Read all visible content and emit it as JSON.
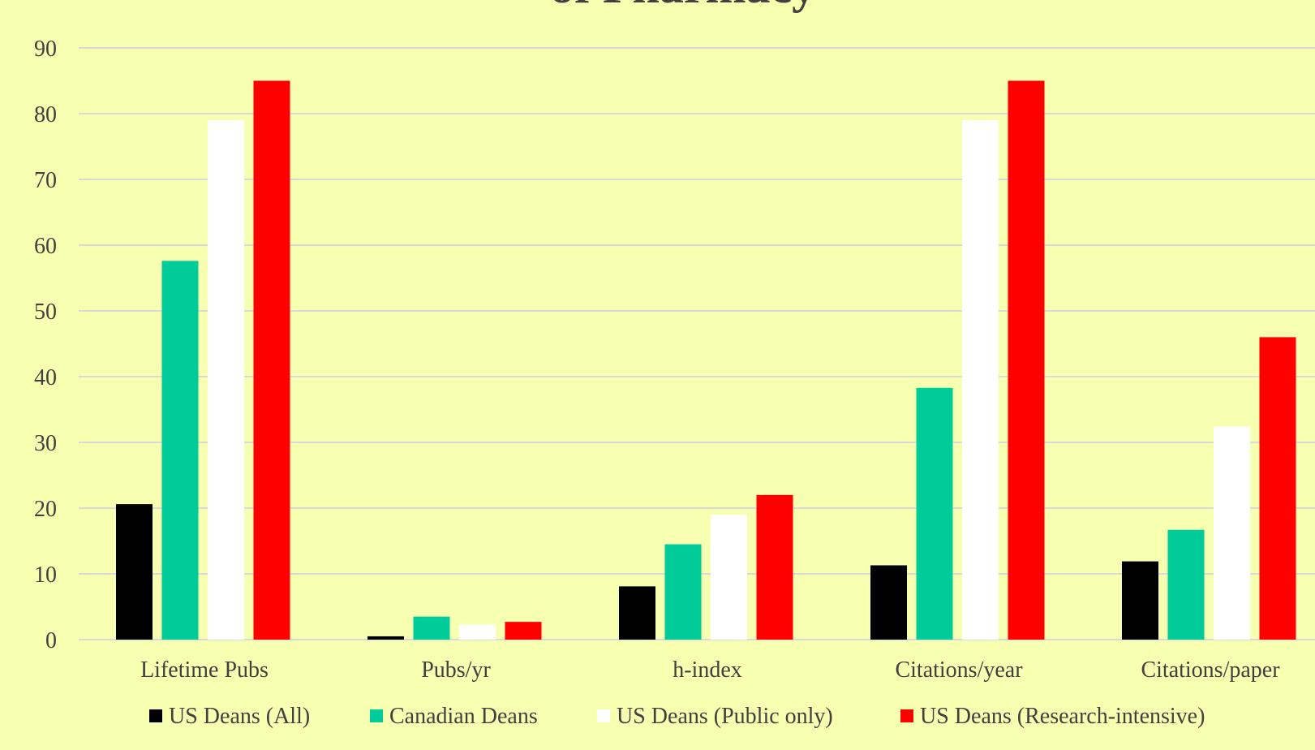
{
  "chart_data": {
    "type": "bar",
    "title": "of Pharmacy",
    "categories": [
      "Lifetime Pubs",
      "Pubs/yr",
      "h-index",
      "Citations/year",
      "Citations/paper"
    ],
    "series": [
      {
        "name": "US Deans (All)",
        "color": "#000000",
        "values": [
          20.6,
          0.5,
          8.1,
          11.3,
          11.9
        ]
      },
      {
        "name": "Canadian Deans",
        "color": "#00cc99",
        "values": [
          57.6,
          3.5,
          14.5,
          38.3,
          16.7
        ]
      },
      {
        "name": "US Deans (Public only)",
        "color": "#ffffff",
        "values": [
          79,
          2.3,
          19,
          79,
          32.4
        ]
      },
      {
        "name": "US Deans (Research-intensive)",
        "color": "#ff0000",
        "values": [
          85,
          2.7,
          22,
          85,
          46
        ]
      }
    ],
    "ylim": [
      0,
      90
    ],
    "yticks": [
      0,
      10,
      20,
      30,
      40,
      50,
      60,
      70,
      80,
      90
    ],
    "xlabel": "",
    "ylabel": "",
    "grid": true,
    "legend_position": "bottom",
    "background": "#f7ffb0",
    "gridline_color": "#d9d9d9",
    "text_color": "#404040"
  }
}
